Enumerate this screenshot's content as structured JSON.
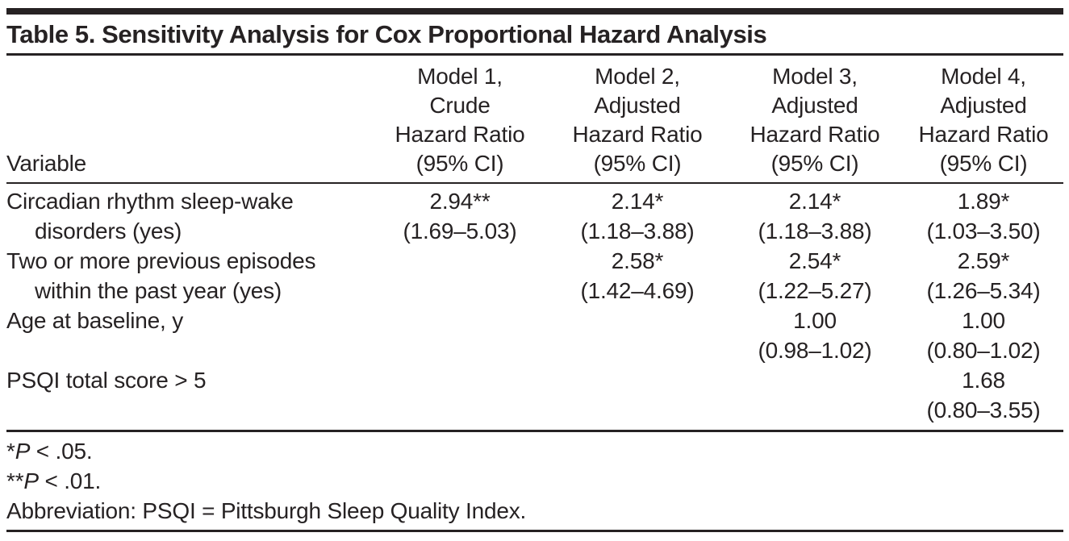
{
  "table": {
    "title": "Table 5. Sensitivity Analysis for Cox Proportional Hazard Analysis",
    "header": {
      "variable": "Variable",
      "models": [
        {
          "lines": [
            "Model 1,",
            "Crude",
            "Hazard Ratio",
            "(95% CI)"
          ]
        },
        {
          "lines": [
            "Model 2,",
            "Adjusted",
            "Hazard Ratio",
            "(95% CI)"
          ]
        },
        {
          "lines": [
            "Model 3,",
            "Adjusted",
            "Hazard Ratio",
            "(95% CI)"
          ]
        },
        {
          "lines": [
            "Model 4,",
            "Adjusted",
            "Hazard Ratio",
            "(95% CI)"
          ]
        }
      ]
    },
    "rows": [
      {
        "label": [
          "Circadian rhythm sleep-wake",
          "disorders (yes)"
        ],
        "values": [
          {
            "est": "2.94**",
            "ci": "(1.69–5.03)"
          },
          {
            "est": "2.14*",
            "ci": "(1.18–3.88)"
          },
          {
            "est": "2.14*",
            "ci": "(1.18–3.88)"
          },
          {
            "est": "1.89*",
            "ci": "(1.03–3.50)"
          }
        ]
      },
      {
        "label": [
          "Two or more previous episodes",
          "within the past year (yes)"
        ],
        "values": [
          {
            "est": "",
            "ci": ""
          },
          {
            "est": "2.58*",
            "ci": "(1.42–4.69)"
          },
          {
            "est": "2.54*",
            "ci": "(1.22–5.27)"
          },
          {
            "est": "2.59*",
            "ci": "(1.26–5.34)"
          }
        ]
      },
      {
        "label": [
          "Age at baseline, y",
          ""
        ],
        "values": [
          {
            "est": "",
            "ci": ""
          },
          {
            "est": "",
            "ci": ""
          },
          {
            "est": "1.00",
            "ci": "(0.98–1.02)"
          },
          {
            "est": "1.00",
            "ci": "(0.80–1.02)"
          }
        ]
      },
      {
        "label": [
          "PSQI total score > 5",
          ""
        ],
        "values": [
          {
            "est": "",
            "ci": ""
          },
          {
            "est": "",
            "ci": ""
          },
          {
            "est": "",
            "ci": ""
          },
          {
            "est": "1.68",
            "ci": "(0.80–3.55)"
          }
        ]
      }
    ],
    "footnotes": [
      {
        "marker": "*",
        "symbol": "P",
        "text": " < .05."
      },
      {
        "marker": "**",
        "symbol": "P",
        "text": " < .01."
      }
    ],
    "abbreviation": "Abbreviation: PSQI = Pittsburgh Sleep Quality Index.",
    "colors": {
      "text": "#262223",
      "rule": "#262223",
      "background": "#ffffff"
    }
  }
}
